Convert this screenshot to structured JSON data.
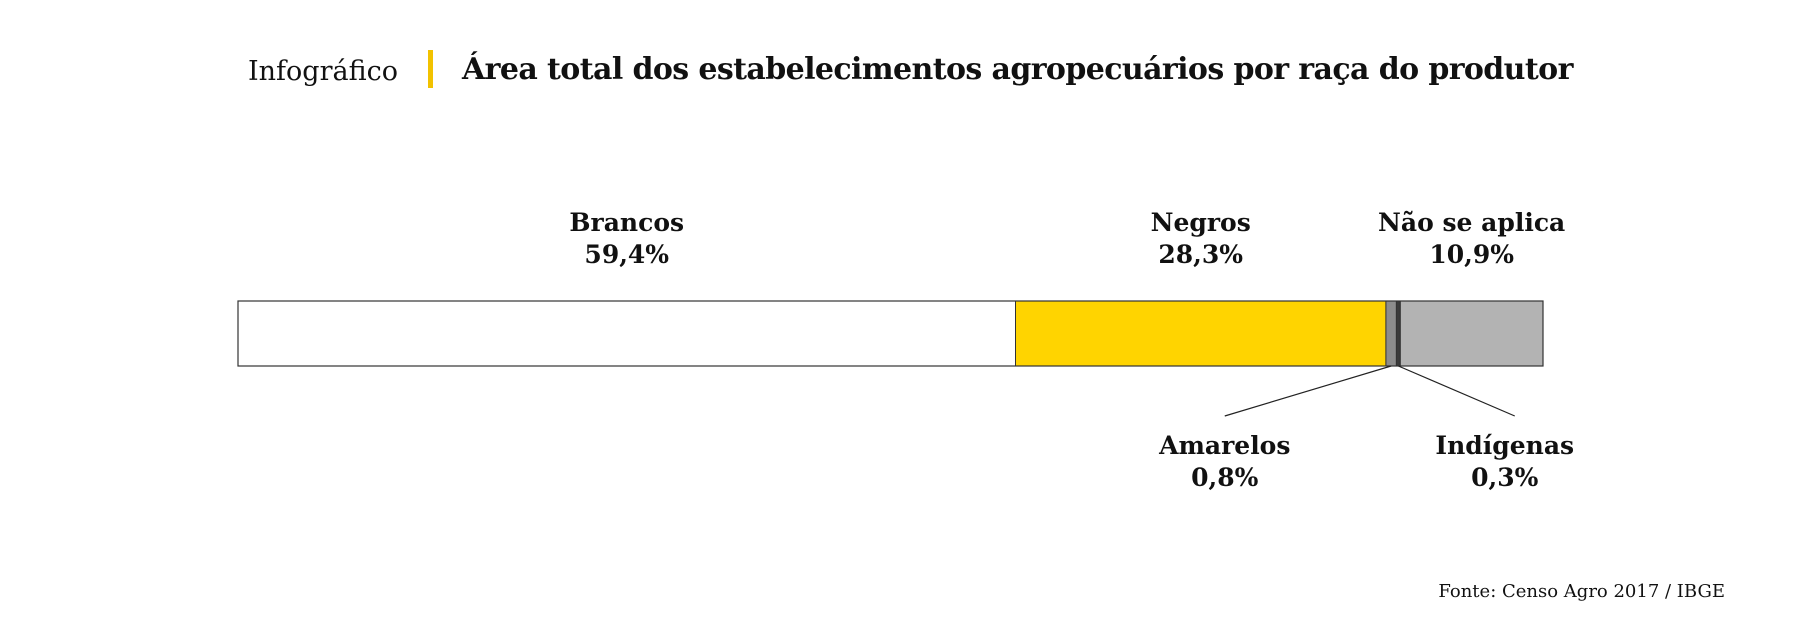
{
  "header": {
    "kicker": "Infográfico",
    "title": "Área total dos estabelecimentos agropecuários por raça do produtor",
    "accent_color": "#f2c200"
  },
  "source": "Fonte: Censo Agro 2017 / IBGE",
  "chart_data": {
    "type": "bar",
    "subtype": "100% stacked horizontal bar",
    "title": "Área total dos estabelecimentos agropecuários por raça do produtor",
    "unit": "%",
    "series": [
      {
        "name": "Brancos",
        "value": 59.4,
        "label": "59,4%",
        "color": "#ffffff",
        "label_position": "above"
      },
      {
        "name": "Negros",
        "value": 28.3,
        "label": "28,3%",
        "color": "#ffd400",
        "label_position": "above"
      },
      {
        "name": "Amarelos",
        "value": 0.8,
        "label": "0,8%",
        "color": "#8c8c8c",
        "label_position": "below"
      },
      {
        "name": "Indígenas",
        "value": 0.3,
        "label": "0,3%",
        "color": "#3a3a3a",
        "label_position": "below"
      },
      {
        "name": "Não se aplica",
        "value": 10.9,
        "label": "10,9%",
        "color": "#b3b3b3",
        "label_position": "above"
      }
    ]
  }
}
